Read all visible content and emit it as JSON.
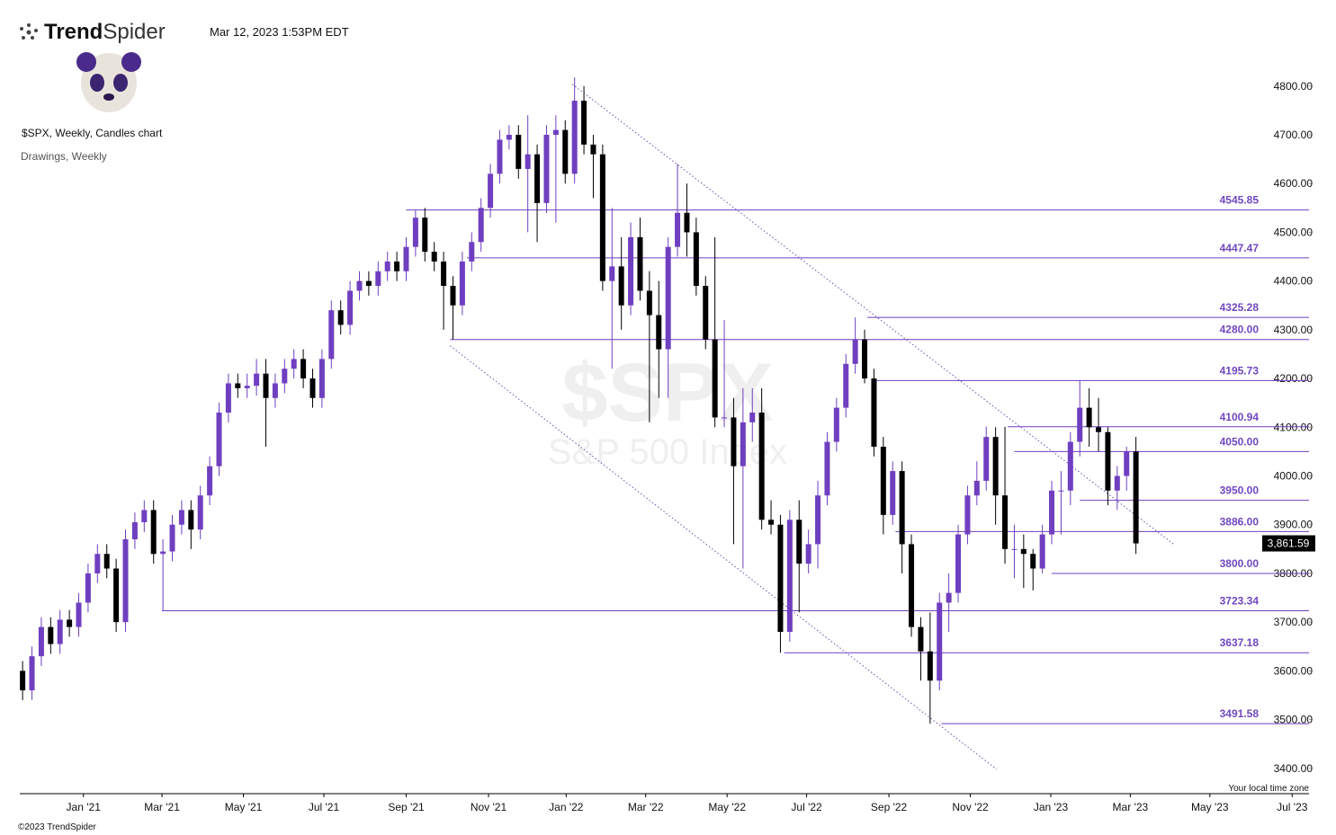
{
  "chart_data": {
    "type": "candlestick",
    "brand_bold": "Trend",
    "brand_light": "Spider",
    "timestamp": "Mar 12, 2023 1:53PM EDT",
    "title": "$SPX, Weekly, Candles chart",
    "subtitle": "Drawings, Weekly",
    "watermark_symbol": "$SPX",
    "watermark_name": "S&P 500 Index",
    "timezone_note": "Your local time zone",
    "copyright": "©2023 TrendSpider",
    "up_color": "#6f3fc0",
    "down_color": "#000000",
    "level_color": "#6f3fc0",
    "open": [
      3600,
      3560,
      3630,
      3690,
      3655,
      3705,
      3690,
      3740,
      3800,
      3840,
      3810,
      3700,
      3870,
      3905,
      3930,
      3840,
      3845,
      3900,
      3930,
      3890,
      3960,
      4020,
      4130,
      4190,
      4180,
      4185,
      4210,
      4160,
      4190,
      4220,
      4240,
      4200,
      4160,
      4240,
      4340,
      4310,
      4380,
      4400,
      4390,
      4420,
      4440,
      4420,
      4470,
      4530,
      4460,
      4440,
      4390,
      4350,
      4440,
      4480,
      4550,
      4620,
      4690,
      4700,
      4630,
      4660,
      4560,
      4700,
      4710,
      4620,
      4770,
      4680,
      4660,
      4400,
      4430,
      4350,
      4490,
      4380,
      4330,
      4260,
      4470,
      4540,
      4500,
      4390,
      4280,
      4120,
      4120,
      4020,
      4110,
      4130,
      3910,
      3900,
      3680,
      3910,
      3820,
      3860,
      3960,
      4070,
      4140,
      4230,
      4280,
      4200,
      4060,
      3920,
      4010,
      3860,
      3690,
      3640,
      3580,
      3740,
      3760,
      3880,
      3960,
      3990,
      4080,
      3960,
      3850,
      3850,
      3840,
      3810,
      3880,
      3970,
      3970,
      4070,
      4140,
      4100,
      4090,
      3970,
      4000,
      4050
    ],
    "high": [
      3620,
      3650,
      3710,
      3710,
      3725,
      3725,
      3760,
      3820,
      3860,
      3860,
      3830,
      3890,
      3925,
      3950,
      3950,
      3870,
      3920,
      3950,
      3950,
      3980,
      4040,
      4150,
      4210,
      4210,
      4210,
      4240,
      4240,
      4210,
      4240,
      4260,
      4260,
      4220,
      4260,
      4360,
      4360,
      4400,
      4420,
      4420,
      4440,
      4460,
      4460,
      4490,
      4545.85,
      4550,
      4480,
      4460,
      4410,
      4460,
      4500,
      4570,
      4640,
      4710,
      4720,
      4720,
      4740,
      4680,
      4720,
      4740,
      4730,
      4818,
      4800,
      4700,
      4680,
      4550,
      4490,
      4520,
      4530,
      4420,
      4400,
      4490,
      4640,
      4600,
      4530,
      4410,
      4490,
      4320,
      4160,
      4180,
      4180,
      4180,
      3950,
      3920,
      3930,
      3950,
      3890,
      3990,
      4090,
      4160,
      4250,
      4325.28,
      4300,
      4220,
      4080,
      4030,
      4030,
      3880,
      3710,
      3720,
      3760,
      3800,
      3900,
      3980,
      4030,
      4100.94,
      4100,
      4101,
      3900,
      3880,
      3850,
      3900,
      3990,
      4010,
      4090,
      4195.73,
      4180,
      4160,
      4100,
      4020,
      4060,
      4080
    ],
    "low": [
      3540,
      3540,
      3610,
      3635,
      3635,
      3670,
      3670,
      3720,
      3780,
      3790,
      3680,
      3680,
      3850,
      3885,
      3820,
      3723.34,
      3825,
      3880,
      3850,
      3870,
      3940,
      4000,
      4110,
      4160,
      4160,
      4165,
      4060,
      4140,
      4170,
      4200,
      4180,
      4140,
      4140,
      4220,
      4290,
      4290,
      4360,
      4370,
      4370,
      4400,
      4400,
      4400,
      4450,
      4440,
      4420,
      4300,
      4280,
      4330,
      4420,
      4460,
      4530,
      4600,
      4670,
      4610,
      4500,
      4480,
      4540,
      4520,
      4600,
      4600,
      4660,
      4570,
      4380,
      4220,
      4300,
      4330,
      4360,
      4110,
      4160,
      4160,
      4450,
      4450,
      4370,
      4260,
      4100,
      4100,
      3860,
      3810,
      4070,
      3890,
      3880,
      3637.18,
      3660,
      3720,
      3800,
      3810,
      3940,
      4050,
      4120,
      4210,
      4190,
      4040,
      3880,
      3900,
      3800,
      3670,
      3580,
      3491.58,
      3560,
      3680,
      3740,
      3860,
      3940,
      3970,
      3900,
      3820,
      3790,
      3770,
      3765,
      3800,
      3860,
      3880,
      3940,
      4040,
      4060,
      4050,
      3940,
      3930,
      3970,
      3840
    ],
    "close": [
      3560,
      3630,
      3690,
      3655,
      3705,
      3690,
      3740,
      3800,
      3840,
      3810,
      3700,
      3870,
      3905,
      3930,
      3840,
      3845,
      3900,
      3930,
      3890,
      3960,
      4020,
      4130,
      4190,
      4180,
      4185,
      4210,
      4160,
      4190,
      4220,
      4240,
      4200,
      4160,
      4240,
      4340,
      4310,
      4380,
      4400,
      4390,
      4420,
      4440,
      4420,
      4470,
      4530,
      4460,
      4440,
      4390,
      4350,
      4440,
      4480,
      4550,
      4620,
      4690,
      4700,
      4630,
      4660,
      4560,
      4700,
      4710,
      4620,
      4770,
      4680,
      4660,
      4400,
      4430,
      4350,
      4490,
      4380,
      4330,
      4260,
      4470,
      4540,
      4500,
      4390,
      4280,
      4120,
      4120,
      4020,
      4110,
      4130,
      3910,
      3900,
      3680,
      3910,
      3820,
      3860,
      3960,
      4070,
      4140,
      4230,
      4280,
      4200,
      4060,
      3920,
      4010,
      3860,
      3690,
      3640,
      3580,
      3740,
      3760,
      3880,
      3960,
      3990,
      4080,
      3960,
      3850,
      3850,
      3840,
      3810,
      3880,
      3970,
      3970,
      4070,
      4140,
      4100,
      4090,
      3970,
      4000,
      4050,
      3861.59
    ],
    "last_price": {
      "value": 3861.59,
      "label": "3,861.59"
    },
    "levels": [
      {
        "value": 4545.85,
        "label": "4545.85",
        "start": 41
      },
      {
        "value": 4447.47,
        "label": "4447.47",
        "start": 47.5
      },
      {
        "value": 4325.28,
        "label": "4325.28",
        "start": 90.3
      },
      {
        "value": 4280,
        "label": "4280.00",
        "start": 45.7
      },
      {
        "value": 4195.73,
        "label": "4195.73",
        "start": 91.3
      },
      {
        "value": 4100.94,
        "label": "4100.94",
        "start": 105.3
      },
      {
        "value": 4050,
        "label": "4050.00",
        "start": 106
      },
      {
        "value": 3950,
        "label": "3950.00",
        "start": 113
      },
      {
        "value": 3886,
        "label": "3886.00",
        "start": 93.3
      },
      {
        "value": 3800,
        "label": "3800.00",
        "start": 110
      },
      {
        "value": 3723.34,
        "label": "3723.34",
        "start": 14.9
      },
      {
        "value": 3637.18,
        "label": "3637.18",
        "start": 81.4
      },
      {
        "value": 3491.58,
        "label": "3491.58",
        "start": 98.2
      }
    ],
    "trendlines": [
      {
        "x": [
          58.75,
          123.1
        ],
        "y": [
          4804,
          3859
        ]
      },
      {
        "x": [
          45.7,
          104.1
        ],
        "y": [
          4267,
          3398
        ]
      }
    ],
    "xlim": [
      -0.3,
      137.5
    ],
    "xticks": [
      {
        "value": 6.5,
        "label": "Jan '21"
      },
      {
        "value": 14.9,
        "label": "Mar '21"
      },
      {
        "value": 23.6,
        "label": "May '21"
      },
      {
        "value": 32.2,
        "label": "Jul '21"
      },
      {
        "value": 41.0,
        "label": "Sep '21"
      },
      {
        "value": 49.8,
        "label": "Nov '21"
      },
      {
        "value": 58.1,
        "label": "Jan '22"
      },
      {
        "value": 66.6,
        "label": "Mar '22"
      },
      {
        "value": 75.3,
        "label": "May '22"
      },
      {
        "value": 83.8,
        "label": "Jul '22"
      },
      {
        "value": 92.6,
        "label": "Sep '22"
      },
      {
        "value": 101.3,
        "label": "Nov '22"
      },
      {
        "value": 109.9,
        "label": "Jan '23"
      },
      {
        "value": 118.4,
        "label": "Mar '23"
      },
      {
        "value": 126.9,
        "label": "May '23"
      },
      {
        "value": 135.7,
        "label": "Jul '23"
      }
    ],
    "ylim": [
      3348,
      4866
    ],
    "yticks": [
      {
        "value": 3400,
        "label": "3400.00"
      },
      {
        "value": 3500,
        "label": "3500.00"
      },
      {
        "value": 3600,
        "label": "3600.00"
      },
      {
        "value": 3700,
        "label": "3700.00"
      },
      {
        "value": 3800,
        "label": "3800.00"
      },
      {
        "value": 3900,
        "label": "3900.00"
      },
      {
        "value": 4000,
        "label": "4000.00"
      },
      {
        "value": 4100,
        "label": "4100.00"
      },
      {
        "value": 4200,
        "label": "4200.00"
      },
      {
        "value": 4300,
        "label": "4300.00"
      },
      {
        "value": 4400,
        "label": "4400.00"
      },
      {
        "value": 4500,
        "label": "4500.00"
      },
      {
        "value": 4600,
        "label": "4600.00"
      },
      {
        "value": 4700,
        "label": "4700.00"
      },
      {
        "value": 4800,
        "label": "4800.00"
      }
    ]
  }
}
